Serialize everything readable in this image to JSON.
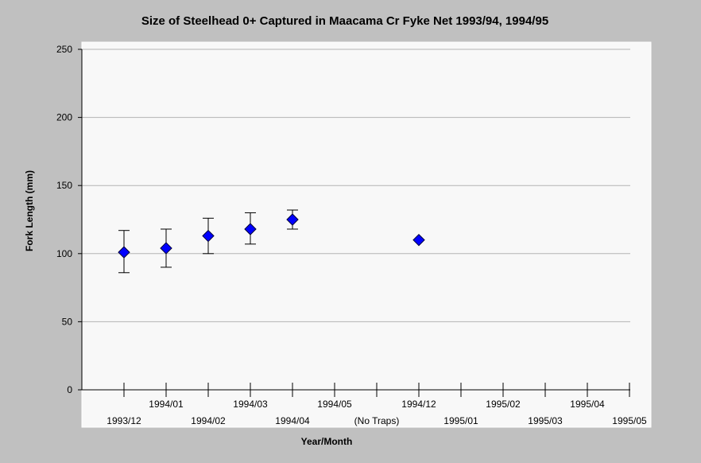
{
  "chart_data": {
    "type": "scatter",
    "title": "Size of Steelhead 0+ Captured in Maacama Cr Fyke Net 1993/94, 1994/95",
    "xlabel": "Year/Month",
    "ylabel": "Fork Length (mm)",
    "ylim": [
      0,
      250
    ],
    "yticks": [
      0,
      50,
      100,
      150,
      200,
      250
    ],
    "categories": [
      "1993/12",
      "1994/01",
      "1994/02",
      "1994/03",
      "1994/04",
      "1994/05",
      "(No Traps)",
      "1994/12",
      "1995/01",
      "1995/02",
      "1995/03",
      "1995/04",
      "1995/05"
    ],
    "grid": true,
    "series": [
      {
        "color": "#0000ff",
        "marker": "diamond",
        "points": [
          {
            "category": "1993/12",
            "y": 101,
            "ylow": 86,
            "yhigh": 117
          },
          {
            "category": "1994/01",
            "y": 104,
            "ylow": 90,
            "yhigh": 118
          },
          {
            "category": "1994/02",
            "y": 113,
            "ylow": 100,
            "yhigh": 126
          },
          {
            "category": "1994/03",
            "y": 118,
            "ylow": 107,
            "yhigh": 130
          },
          {
            "category": "1994/04",
            "y": 125,
            "ylow": 118,
            "yhigh": 132
          },
          {
            "category": "1994/12",
            "y": 110,
            "ylow": null,
            "yhigh": null
          }
        ]
      }
    ]
  }
}
